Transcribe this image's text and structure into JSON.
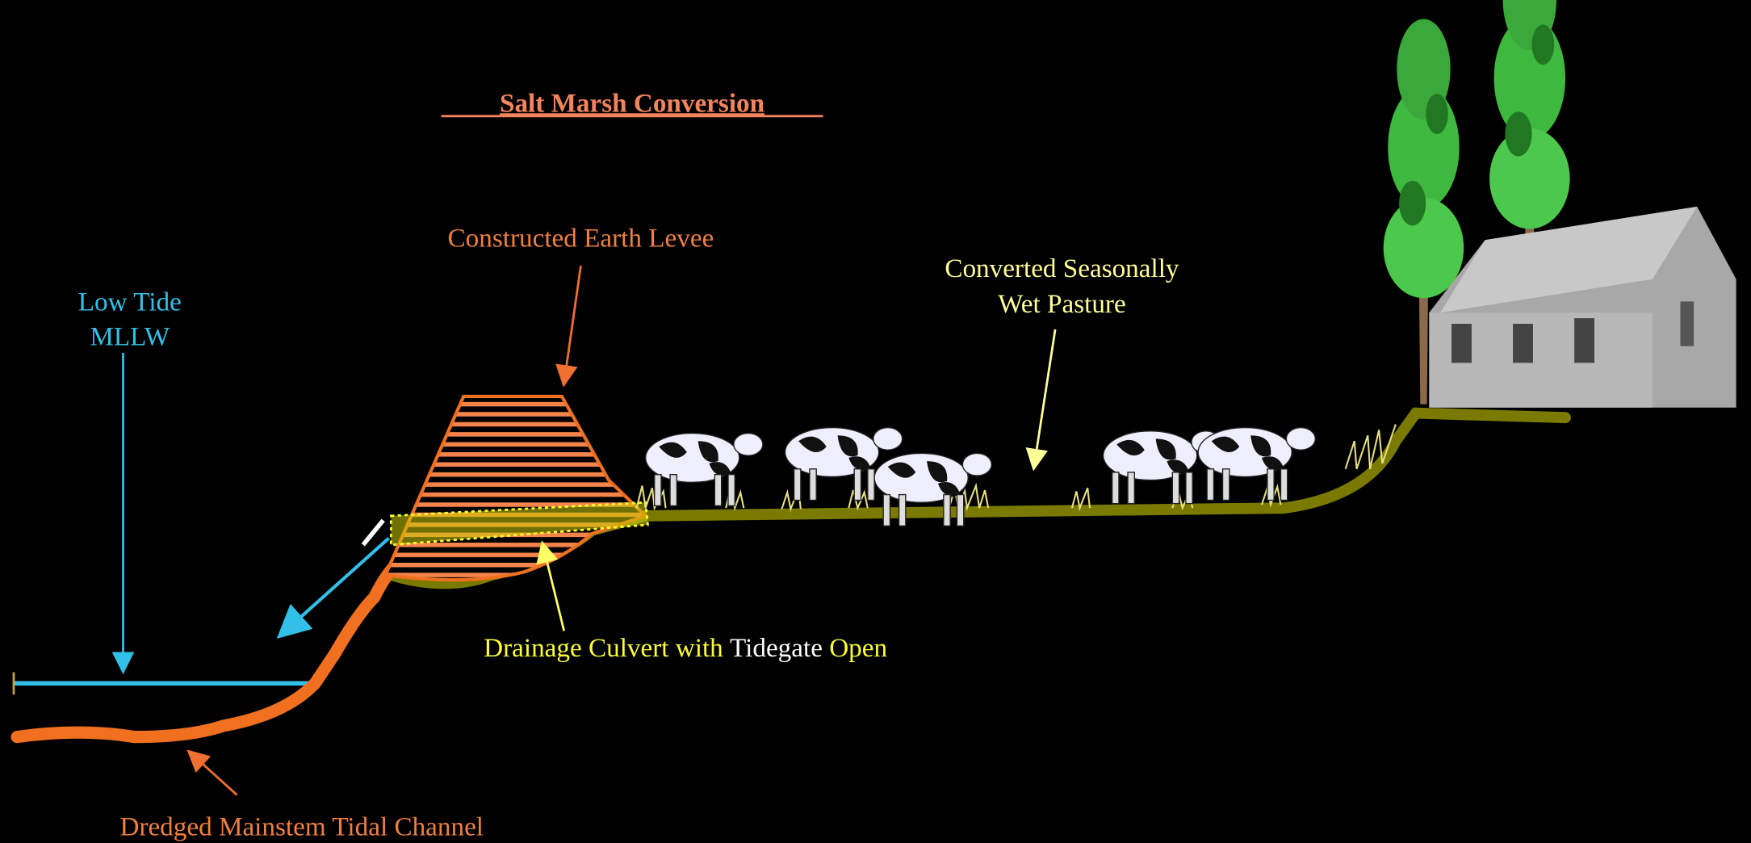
{
  "title": "Salt Marsh Conversion",
  "labels": {
    "levee": "Constructed Earth Levee",
    "low_tide": [
      "Low Tide",
      "MLLW"
    ],
    "pasture": [
      "Converted Seasonally",
      "Wet Pasture"
    ],
    "culvert": [
      "Drainage Culvert with",
      "Tidegate",
      "Open"
    ],
    "channel": "Dredged Mainstem Tidal Channel"
  }
}
